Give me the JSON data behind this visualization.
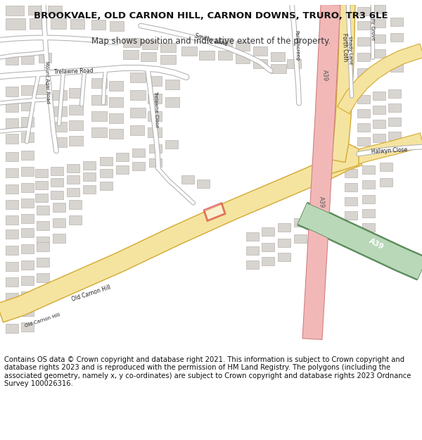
{
  "title": "BROOKVALE, OLD CARNON HILL, CARNON DOWNS, TRURO, TR3 6LE",
  "subtitle": "Map shows position and indicative extent of the property.",
  "footer": "Contains OS data © Crown copyright and database right 2021. This information is subject to Crown copyright and database rights 2023 and is reproduced with the permission of HM Land Registry. The polygons (including the associated geometry, namely x, y co-ordinates) are subject to Crown copyright and database rights 2023 Ordnance Survey 100026316.",
  "map_bg": "#f0eeeb",
  "road_yellow_fill": "#f5e4a0",
  "road_yellow_border": "#d4a830",
  "road_pink_fill": "#f2b8b8",
  "road_pink_border": "#d08080",
  "road_green_fill": "#b8d8b8",
  "road_green_border": "#5a8a5a",
  "building_color": "#d8d4d0",
  "building_edge": "#b8b4b0",
  "road_white_fill": "#ffffff",
  "road_white_edge": "#c8c8c8",
  "plot_color": "#cc0000",
  "title_fontsize": 9.5,
  "subtitle_fontsize": 8.5,
  "footer_fontsize": 7.2,
  "label_fontsize": 5.5
}
